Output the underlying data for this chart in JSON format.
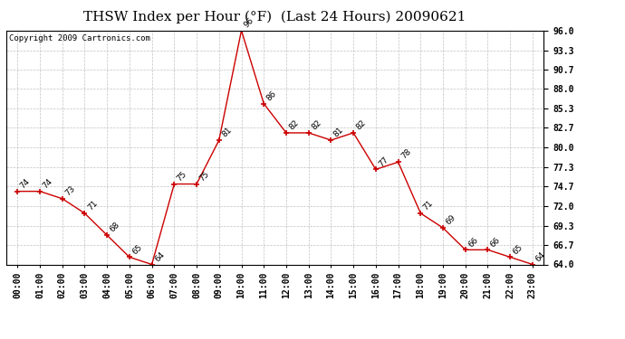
{
  "title": "THSW Index per Hour (°F)  (Last 24 Hours) 20090621",
  "copyright": "Copyright 2009 Cartronics.com",
  "hours": [
    "00:00",
    "01:00",
    "02:00",
    "03:00",
    "04:00",
    "05:00",
    "06:00",
    "07:00",
    "08:00",
    "09:00",
    "10:00",
    "11:00",
    "12:00",
    "13:00",
    "14:00",
    "15:00",
    "16:00",
    "17:00",
    "18:00",
    "19:00",
    "20:00",
    "21:00",
    "22:00",
    "23:00"
  ],
  "values": [
    74,
    74,
    73,
    71,
    68,
    65,
    64,
    75,
    75,
    81,
    96,
    86,
    82,
    82,
    81,
    82,
    77,
    78,
    71,
    69,
    66,
    66,
    65,
    64
  ],
  "line_color": "#cc0000",
  "marker_color": "#cc0000",
  "bg_color": "#ffffff",
  "grid_color": "#bbbbbb",
  "ylim_min": 64.0,
  "ylim_max": 96.0,
  "yticks": [
    64.0,
    66.7,
    69.3,
    72.0,
    74.7,
    77.3,
    80.0,
    82.7,
    85.3,
    88.0,
    90.7,
    93.3,
    96.0
  ],
  "title_fontsize": 11,
  "copyright_fontsize": 6.5,
  "label_fontsize": 6.5,
  "tick_fontsize": 7.0
}
